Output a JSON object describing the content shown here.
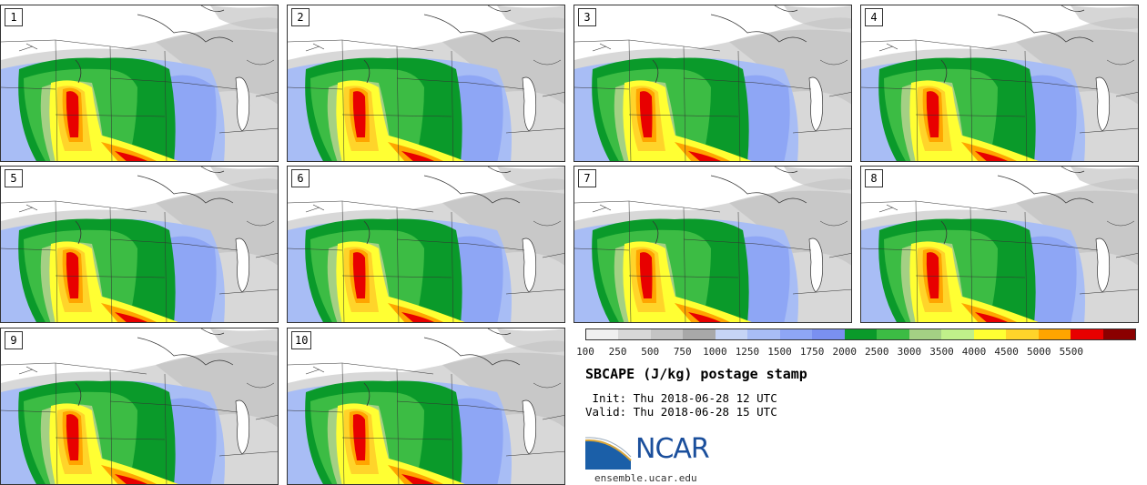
{
  "panels": [
    {
      "label": "1"
    },
    {
      "label": "2"
    },
    {
      "label": "3"
    },
    {
      "label": "4"
    },
    {
      "label": "5"
    },
    {
      "label": "6"
    },
    {
      "label": "7"
    },
    {
      "label": "8"
    },
    {
      "label": "9"
    },
    {
      "label": "10"
    }
  ],
  "colorbar": {
    "ticks": [
      "100",
      "250",
      "500",
      "750",
      "1000",
      "1250",
      "1500",
      "1750",
      "2000",
      "2500",
      "3000",
      "3500",
      "4000",
      "4500",
      "5000",
      "5500"
    ],
    "colors": [
      "#f0f0f0",
      "#d8d8d8",
      "#c4c4c4",
      "#a8a8a8",
      "#c6d4f5",
      "#a8bdf5",
      "#8ea6f5",
      "#7a90f0",
      "#0a9a2a",
      "#3cbc44",
      "#a4d084",
      "#c0f08a",
      "#ffff33",
      "#ffd42a",
      "#ffa500",
      "#e80000",
      "#8b0000"
    ]
  },
  "title": "SBCAPE (J/kg) postage stamp",
  "init": " Init: Thu 2018-06-28 12 UTC",
  "valid": "Valid: Thu 2018-06-28 15 UTC",
  "logo": {
    "text": "NCAR",
    "site": "ensemble.ucar.edu"
  }
}
